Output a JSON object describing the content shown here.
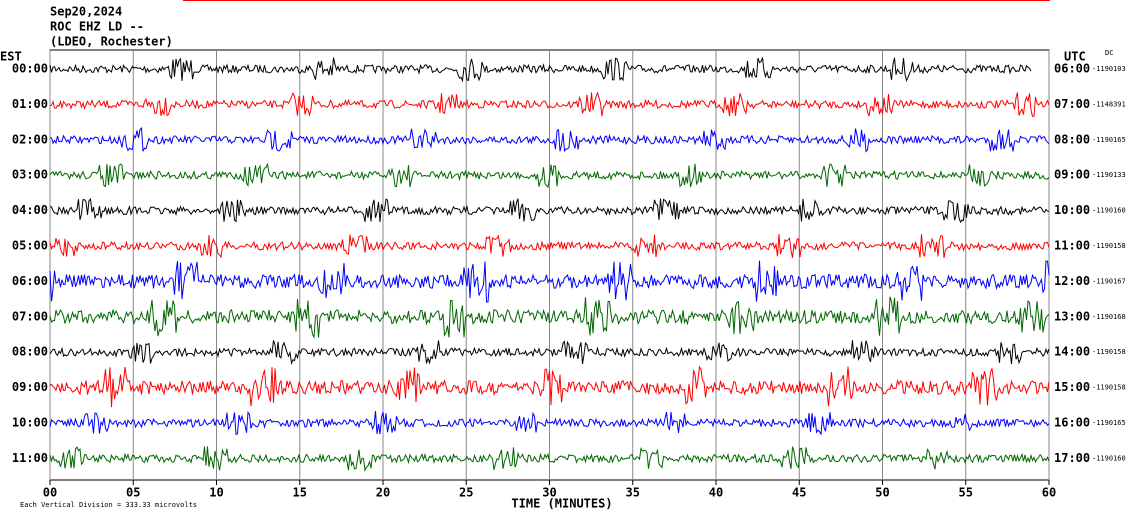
{
  "chart_data": {
    "type": "helicorder",
    "title_lines": [
      "Sep20,2024",
      "ROC EHZ LD --",
      "(LDEO, Rochester)"
    ],
    "left_axis_label": "EST",
    "right_axis_label": "UTC",
    "dc_label": "DC",
    "xlabel": "TIME (MINUTES)",
    "footer": "Each Vertical Division =  333.33 microvolts",
    "xlim": [
      0,
      60
    ],
    "xticks": [
      {
        "value": 0,
        "label": "00"
      },
      {
        "value": 5,
        "label": "05"
      },
      10,
      15,
      20,
      25,
      30,
      35,
      40,
      45,
      50,
      55,
      60
    ],
    "grid": true,
    "rows": [
      {
        "est": "00:00",
        "utc": "06:00",
        "dc": "-1190103",
        "color": "#000000"
      },
      {
        "est": "01:00",
        "utc": "07:00",
        "dc": "-1148391",
        "color": "#ff0000"
      },
      {
        "est": "02:00",
        "utc": "08:00",
        "dc": "-1190165",
        "color": "#0000ff"
      },
      {
        "est": "03:00",
        "utc": "09:00",
        "dc": "-1190133",
        "color": "#006600"
      },
      {
        "est": "04:00",
        "utc": "10:00",
        "dc": "-1190160",
        "color": "#000000"
      },
      {
        "est": "05:00",
        "utc": "11:00",
        "dc": "-1190158",
        "color": "#ff0000"
      },
      {
        "est": "06:00",
        "utc": "12:00",
        "dc": "-1190167",
        "color": "#0000ff"
      },
      {
        "est": "07:00",
        "utc": "13:00",
        "dc": "-1190168",
        "color": "#006600"
      },
      {
        "est": "08:00",
        "utc": "14:00",
        "dc": "-1190158",
        "color": "#000000"
      },
      {
        "est": "09:00",
        "utc": "15:00",
        "dc": "-1190158",
        "color": "#ff0000"
      },
      {
        "est": "10:00",
        "utc": "16:00",
        "dc": "-1190165",
        "color": "#0000ff"
      },
      {
        "est": "11:00",
        "utc": "17:00",
        "dc": "-1190160",
        "color": "#006600"
      }
    ]
  }
}
